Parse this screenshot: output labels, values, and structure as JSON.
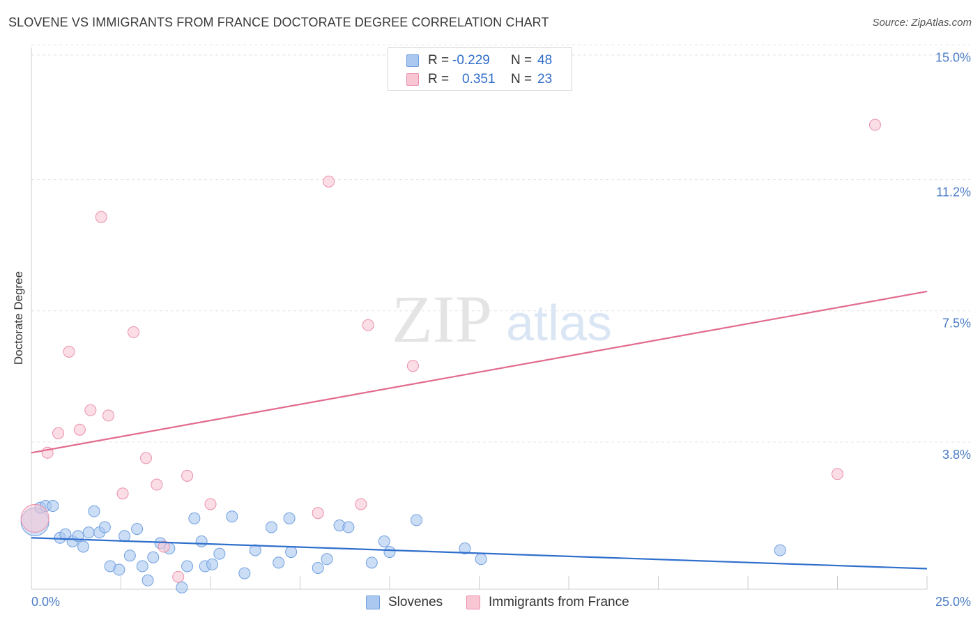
{
  "header": {
    "title": "SLOVENE VS IMMIGRANTS FROM FRANCE DOCTORATE DEGREE CORRELATION CHART",
    "source": "Source: ZipAtlas.com"
  },
  "watermark": {
    "zip": "ZIP",
    "atlas": "atlas"
  },
  "stats": {
    "r_label": "R =",
    "n_label": "N =",
    "rows": [
      {
        "r": "-0.229",
        "n": "48",
        "color": "#aac8f0",
        "border": "#6f9fdf"
      },
      {
        "r": "0.351",
        "n": "23",
        "color": "#f9c6d4",
        "border": "#ea8fab"
      }
    ]
  },
  "legend": {
    "items": [
      {
        "label": "Slovenes",
        "color": "#aac8f0",
        "border": "#6f9fdf"
      },
      {
        "label": "Immigrants from France",
        "color": "#f9c6d4",
        "border": "#ea8fab"
      }
    ]
  },
  "chart_data": {
    "type": "scatter",
    "title": "SLOVENE VS IMMIGRANTS FROM FRANCE DOCTORATE DEGREE CORRELATION CHART",
    "xlabel": "",
    "ylabel": "Doctorate Degree",
    "xlim": [
      0,
      25
    ],
    "ylim": [
      0,
      15.5
    ],
    "x_tick_labels": [
      {
        "value": 0,
        "label": "0.0%"
      },
      {
        "value": 25,
        "label": "25.0%"
      }
    ],
    "y_tick_labels": [
      {
        "value": 3.8,
        "label": "3.8%"
      },
      {
        "value": 7.5,
        "label": "7.5%"
      },
      {
        "value": 11.2,
        "label": "11.2%"
      },
      {
        "value": 15.0,
        "label": "15.0%"
      }
    ],
    "grid": true,
    "legend_position": "bottom",
    "series": [
      {
        "name": "Slovenes",
        "color": "#6f9fdf",
        "fill": "#aac8f0",
        "trend_color": "#2f6fcc",
        "trend": {
          "x": [
            0,
            25
          ],
          "y": [
            1.45,
            0.58
          ]
        },
        "points": [
          {
            "x": 0.1,
            "y": 1.9,
            "big": true
          },
          {
            "x": 0.25,
            "y": 2.3
          },
          {
            "x": 0.4,
            "y": 2.35
          },
          {
            "x": 0.6,
            "y": 2.35
          },
          {
            "x": 0.8,
            "y": 1.45
          },
          {
            "x": 0.95,
            "y": 1.55
          },
          {
            "x": 1.15,
            "y": 1.35
          },
          {
            "x": 1.3,
            "y": 1.5
          },
          {
            "x": 1.45,
            "y": 1.2
          },
          {
            "x": 1.6,
            "y": 1.6
          },
          {
            "x": 1.75,
            "y": 2.2
          },
          {
            "x": 1.9,
            "y": 1.6
          },
          {
            "x": 2.05,
            "y": 1.75
          },
          {
            "x": 2.2,
            "y": 0.65
          },
          {
            "x": 2.45,
            "y": 0.55
          },
          {
            "x": 2.6,
            "y": 1.5
          },
          {
            "x": 2.75,
            "y": 0.95
          },
          {
            "x": 2.95,
            "y": 1.7
          },
          {
            "x": 3.1,
            "y": 0.65
          },
          {
            "x": 3.25,
            "y": 0.25
          },
          {
            "x": 3.4,
            "y": 0.9
          },
          {
            "x": 3.6,
            "y": 1.3
          },
          {
            "x": 3.85,
            "y": 1.15
          },
          {
            "x": 4.2,
            "y": 0.05
          },
          {
            "x": 4.35,
            "y": 0.65
          },
          {
            "x": 4.55,
            "y": 2.0
          },
          {
            "x": 4.75,
            "y": 1.35
          },
          {
            "x": 4.85,
            "y": 0.65
          },
          {
            "x": 5.05,
            "y": 0.7
          },
          {
            "x": 5.25,
            "y": 1.0
          },
          {
            "x": 5.6,
            "y": 2.05
          },
          {
            "x": 5.95,
            "y": 0.45
          },
          {
            "x": 6.25,
            "y": 1.1
          },
          {
            "x": 6.7,
            "y": 1.75
          },
          {
            "x": 6.9,
            "y": 0.75
          },
          {
            "x": 7.2,
            "y": 2.0
          },
          {
            "x": 7.25,
            "y": 1.05
          },
          {
            "x": 8.0,
            "y": 0.6
          },
          {
            "x": 8.25,
            "y": 0.85
          },
          {
            "x": 8.6,
            "y": 1.8
          },
          {
            "x": 8.85,
            "y": 1.75
          },
          {
            "x": 9.5,
            "y": 0.75
          },
          {
            "x": 9.85,
            "y": 1.35
          },
          {
            "x": 10.0,
            "y": 1.05
          },
          {
            "x": 10.75,
            "y": 1.95
          },
          {
            "x": 12.1,
            "y": 1.15
          },
          {
            "x": 12.55,
            "y": 0.85
          },
          {
            "x": 20.9,
            "y": 1.1
          }
        ]
      },
      {
        "name": "Immigrants from France",
        "color": "#ea8fab",
        "fill": "#f9c6d4",
        "trend_color": "#e26a8d",
        "trend": {
          "x": [
            0,
            25
          ],
          "y": [
            3.85,
            8.4
          ]
        },
        "points": [
          {
            "x": 0.1,
            "y": 2.0,
            "big": true
          },
          {
            "x": 0.45,
            "y": 3.85
          },
          {
            "x": 0.75,
            "y": 4.4
          },
          {
            "x": 1.05,
            "y": 6.7
          },
          {
            "x": 1.35,
            "y": 4.5
          },
          {
            "x": 1.65,
            "y": 5.05
          },
          {
            "x": 1.95,
            "y": 10.5
          },
          {
            "x": 2.15,
            "y": 4.9
          },
          {
            "x": 2.55,
            "y": 2.7
          },
          {
            "x": 2.85,
            "y": 7.25
          },
          {
            "x": 3.2,
            "y": 3.7
          },
          {
            "x": 3.5,
            "y": 2.95
          },
          {
            "x": 3.7,
            "y": 1.2
          },
          {
            "x": 4.1,
            "y": 0.35
          },
          {
            "x": 4.35,
            "y": 3.2
          },
          {
            "x": 5.0,
            "y": 2.4
          },
          {
            "x": 8.0,
            "y": 2.15
          },
          {
            "x": 8.3,
            "y": 11.5
          },
          {
            "x": 9.2,
            "y": 2.4
          },
          {
            "x": 9.4,
            "y": 7.45
          },
          {
            "x": 10.65,
            "y": 6.3
          },
          {
            "x": 22.5,
            "y": 3.25
          },
          {
            "x": 23.55,
            "y": 13.1
          }
        ]
      }
    ]
  }
}
